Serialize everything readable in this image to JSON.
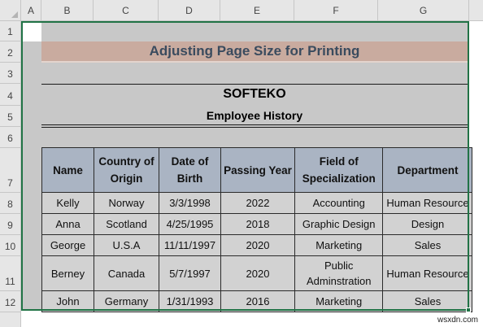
{
  "columns": [
    "A",
    "B",
    "C",
    "D",
    "E",
    "F",
    "G"
  ],
  "rows": [
    "1",
    "2",
    "3",
    "4",
    "5",
    "6",
    "7",
    "8",
    "9",
    "10",
    "11",
    "12"
  ],
  "sheet": {
    "title": "Adjusting Page Size for Printing",
    "company": "SOFTEKO",
    "subtitle": "Employee History"
  },
  "table": {
    "headers": [
      "Name",
      "Country of Origin",
      "Date of Birth",
      "Passing Year",
      "Field of Specialization",
      "Department"
    ],
    "rows": [
      [
        "Kelly",
        "Norway",
        "3/3/1998",
        "2022",
        "Accounting",
        "Human Resource"
      ],
      [
        "Anna",
        "Scotland",
        "4/25/1995",
        "2018",
        "Graphic Design",
        "Design"
      ],
      [
        "George",
        "U.S.A",
        "11/11/1997",
        "2020",
        "Marketing",
        "Sales"
      ],
      [
        "Berney",
        "Canada",
        "5/7/1997",
        "2020",
        "Public Adminstration",
        "Human Resource"
      ],
      [
        "John",
        "Germany",
        "1/31/1993",
        "2016",
        "Marketing",
        "Sales"
      ]
    ]
  },
  "watermark": "wsxdn.com",
  "colors": {
    "selection": "#217346",
    "title_band": "#c9ab9f",
    "header_fill": "#aab4c3",
    "print_area": "#c8c8c8"
  }
}
